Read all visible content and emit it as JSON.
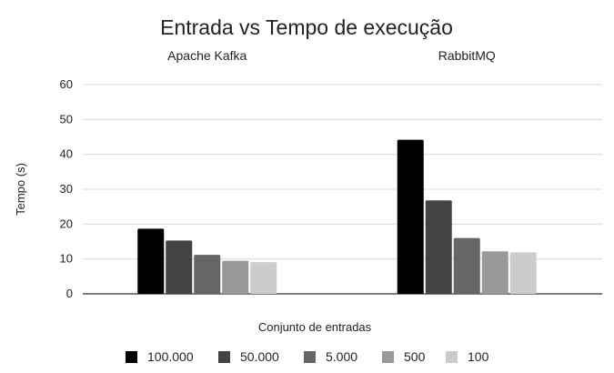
{
  "chart_data": {
    "type": "bar",
    "title": "Entrada vs Tempo de execução",
    "xlabel": "Conjunto de entradas",
    "ylabel": "Tempo (s)",
    "ylim": [
      0,
      60
    ],
    "yticks": [
      0,
      10,
      20,
      30,
      40,
      50,
      60
    ],
    "grid": true,
    "legend_position": "bottom",
    "categories": [
      "Apache Kafka",
      "RabbitMQ"
    ],
    "series": [
      {
        "name": "100.000",
        "color": "#000000",
        "values": [
          18.7,
          44.2
        ]
      },
      {
        "name": "50.000",
        "color": "#434343",
        "values": [
          15.3,
          26.8
        ]
      },
      {
        "name": "5.000",
        "color": "#666666",
        "values": [
          11.2,
          16.0
        ]
      },
      {
        "name": "500",
        "color": "#999999",
        "values": [
          9.5,
          12.2
        ]
      },
      {
        "name": "100",
        "color": "#cccccc",
        "values": [
          9.1,
          11.9
        ]
      }
    ]
  }
}
